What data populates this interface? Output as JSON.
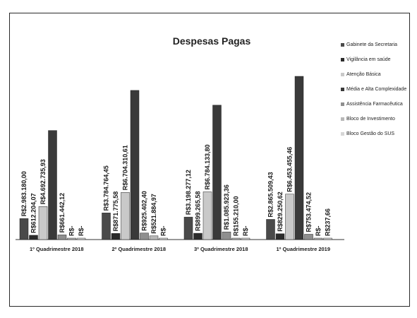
{
  "chart_data": {
    "type": "bar",
    "title": "Despesas Pagas",
    "categories": [
      "1º Quadrimestre 2018",
      "2º Quadrimestre 2018",
      "3º Quadrimestre 2018",
      "1º Quadrimestre 2019"
    ],
    "series": [
      {
        "name": "Gabinete da Secretaria",
        "values": [
          2983180.0,
          3784764.45,
          3198277.12,
          2865509.43
        ],
        "labels": [
          "R$2.983.180,00",
          "R$3.784.764,45",
          "R$3.198.277,12",
          "R$2.865.509,43"
        ]
      },
      {
        "name": "Vigilância em saúde",
        "values": [
          612204.07,
          871775.58,
          899265.58,
          829250.62
        ],
        "labels": [
          "R$612.204,07",
          "R$871.775,58",
          "R$899.265,58",
          "R$829.250,62"
        ]
      },
      {
        "name": "Atenção Básica",
        "values": [
          4692735.93,
          6704310.61,
          6784133.8,
          6453455.46
        ],
        "labels": [
          "R$4.692.735,93",
          "R$6.704.310,61",
          "R$6.784.133,80",
          "R$6.453.455,46"
        ]
      },
      {
        "name": "Média e Alta Complexidade",
        "values": [
          15500000,
          21200000,
          19100000,
          23200000
        ],
        "labels": [
          "",
          "",
          "",
          ""
        ]
      },
      {
        "name": "Assistência Farmacêutica",
        "values": [
          661442.12,
          925402.4,
          1085923.36,
          753474.52
        ],
        "labels": [
          "R$661.442,12",
          "R$925.402,40",
          "R$1.085.923,36",
          "R$753.474,52"
        ]
      },
      {
        "name": "Bloco de Investimento",
        "values": [
          0,
          521884.97,
          155210.0,
          0
        ],
        "labels": [
          "R$-",
          "R$521.884,97",
          "R$155.210,00",
          "R$-"
        ]
      },
      {
        "name": "Bloco Gestão do SUS",
        "values": [
          0,
          0,
          0,
          237.66
        ],
        "labels": [
          "R$-",
          "R$-",
          "R$-",
          "R$237,66"
        ]
      }
    ],
    "legend_position": "right",
    "grid": false
  },
  "colors": {
    "Gabinete da Secretaria": "#4a4a4a",
    "Vigilância em saúde": "#2b2b2b",
    "Atenção Básica": "#c9c9c9",
    "Média e Alta Complexidade": "#3a3a3a",
    "Assistência Farmacêutica": "#8f8f8f",
    "Bloco de Investimento": "#b8b8b8",
    "Bloco Gestão do SUS": "#d6d6d6",
    "axis": "#333333"
  }
}
